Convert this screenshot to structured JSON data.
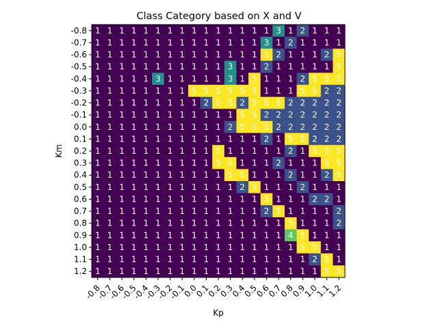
{
  "chart_data": {
    "type": "heatmap",
    "title": "Class Category based on X and V",
    "xlabel": "Kp",
    "ylabel": "Km",
    "x_ticks": [
      "-0.8",
      "-0.7",
      "-0.6",
      "-0.5",
      "-0.4",
      "-0.3",
      "-0.2",
      "-0.1",
      "0.0",
      "0.1",
      "0.2",
      "0.3",
      "0.4",
      "0.5",
      "0.6",
      "0.7",
      "0.8",
      "0.9",
      "1.0",
      "1.1",
      "1.2"
    ],
    "y_ticks": [
      "-0.8",
      "-0.7",
      "-0.6",
      "-0.5",
      "-0.4",
      "-0.3",
      "-0.2",
      "-0.1",
      "0.0",
      "0.1",
      "0.2",
      "0.3",
      "0.4",
      "0.5",
      "0.6",
      "0.7",
      "0.8",
      "0.9",
      "1.0",
      "1.1",
      "1.2"
    ],
    "color_map": {
      "1": "#440154",
      "2": "#3b528b",
      "3": "#21918c",
      "4": "#5ec962",
      "5": "#fde725"
    },
    "values": [
      [
        1,
        1,
        1,
        1,
        1,
        1,
        1,
        1,
        1,
        1,
        1,
        1,
        1,
        1,
        1,
        3,
        1,
        2,
        1,
        1,
        1
      ],
      [
        1,
        1,
        1,
        1,
        1,
        1,
        1,
        1,
        1,
        1,
        1,
        1,
        1,
        1,
        3,
        1,
        2,
        1,
        1,
        1,
        1
      ],
      [
        1,
        1,
        1,
        1,
        1,
        1,
        1,
        1,
        1,
        1,
        1,
        1,
        1,
        1,
        5,
        2,
        1,
        1,
        1,
        2,
        5
      ],
      [
        1,
        1,
        1,
        1,
        1,
        1,
        1,
        1,
        1,
        1,
        1,
        3,
        1,
        1,
        2,
        1,
        1,
        1,
        1,
        1,
        5
      ],
      [
        1,
        1,
        1,
        1,
        1,
        3,
        1,
        1,
        1,
        1,
        1,
        3,
        1,
        5,
        1,
        1,
        1,
        2,
        5,
        5,
        5
      ],
      [
        1,
        1,
        1,
        1,
        1,
        1,
        1,
        1,
        5,
        5,
        5,
        5,
        5,
        5,
        1,
        1,
        1,
        5,
        5,
        2,
        2
      ],
      [
        1,
        1,
        1,
        1,
        1,
        1,
        1,
        1,
        1,
        2,
        5,
        5,
        2,
        5,
        5,
        5,
        2,
        2,
        2,
        2,
        2
      ],
      [
        1,
        1,
        1,
        1,
        1,
        1,
        1,
        1,
        1,
        1,
        1,
        1,
        5,
        5,
        2,
        2,
        2,
        2,
        2,
        2,
        2
      ],
      [
        1,
        1,
        1,
        1,
        1,
        1,
        1,
        1,
        1,
        1,
        1,
        2,
        5,
        5,
        5,
        2,
        2,
        2,
        2,
        2,
        2
      ],
      [
        1,
        1,
        1,
        1,
        1,
        1,
        1,
        1,
        1,
        1,
        1,
        1,
        1,
        1,
        2,
        1,
        5,
        5,
        2,
        2,
        2
      ],
      [
        1,
        1,
        1,
        1,
        1,
        1,
        1,
        1,
        1,
        1,
        5,
        1,
        1,
        1,
        1,
        1,
        2,
        1,
        5,
        5,
        5
      ],
      [
        1,
        1,
        1,
        1,
        1,
        1,
        1,
        1,
        1,
        1,
        5,
        5,
        1,
        1,
        1,
        2,
        1,
        1,
        1,
        5,
        5
      ],
      [
        1,
        1,
        1,
        1,
        1,
        1,
        1,
        1,
        1,
        1,
        1,
        5,
        5,
        1,
        1,
        1,
        2,
        1,
        1,
        2,
        5
      ],
      [
        1,
        1,
        1,
        1,
        1,
        1,
        1,
        1,
        1,
        1,
        1,
        1,
        2,
        5,
        1,
        1,
        1,
        2,
        1,
        1,
        1
      ],
      [
        1,
        1,
        1,
        1,
        1,
        1,
        1,
        1,
        1,
        1,
        1,
        1,
        1,
        1,
        5,
        1,
        1,
        1,
        2,
        2,
        1
      ],
      [
        1,
        1,
        1,
        1,
        1,
        1,
        1,
        1,
        1,
        1,
        1,
        1,
        1,
        1,
        2,
        5,
        1,
        1,
        1,
        1,
        2
      ],
      [
        1,
        1,
        1,
        1,
        1,
        1,
        1,
        1,
        1,
        1,
        1,
        1,
        1,
        1,
        1,
        1,
        5,
        1,
        1,
        1,
        2
      ],
      [
        1,
        1,
        1,
        1,
        1,
        1,
        1,
        1,
        1,
        1,
        1,
        1,
        1,
        1,
        1,
        1,
        4,
        5,
        1,
        1,
        1
      ],
      [
        1,
        1,
        1,
        1,
        1,
        1,
        1,
        1,
        1,
        1,
        1,
        1,
        1,
        1,
        1,
        1,
        1,
        5,
        5,
        1,
        1
      ],
      [
        1,
        1,
        1,
        1,
        1,
        1,
        1,
        1,
        1,
        1,
        1,
        1,
        1,
        1,
        1,
        1,
        1,
        1,
        2,
        5,
        1
      ],
      [
        1,
        1,
        1,
        1,
        1,
        1,
        1,
        1,
        1,
        1,
        1,
        1,
        1,
        1,
        1,
        1,
        1,
        1,
        1,
        5,
        5
      ]
    ]
  }
}
